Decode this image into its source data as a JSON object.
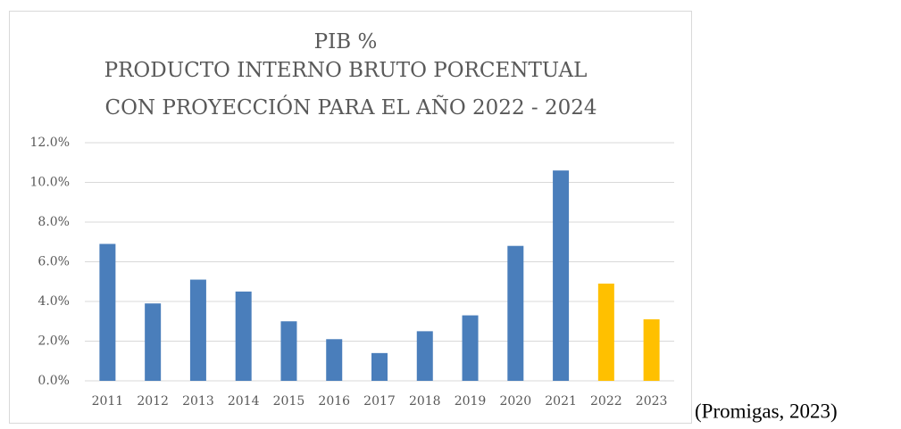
{
  "chart_data": {
    "type": "bar",
    "title": "PIB %",
    "subtitle": [
      "PRODUCTO INTERNO BRUTO PORCENTUAL",
      "CON PROYECCIÓN PARA EL AÑO 2022 - 2024"
    ],
    "categories": [
      "2011",
      "2012",
      "2013",
      "2014",
      "2015",
      "2016",
      "2017",
      "2018",
      "2019",
      "2020",
      "2021",
      "2022",
      "2023"
    ],
    "values": [
      6.9,
      3.9,
      5.1,
      4.5,
      3.0,
      2.1,
      1.4,
      2.5,
      3.3,
      6.8,
      10.6,
      4.9,
      3.1
    ],
    "colors": [
      "#4a7ebb",
      "#4a7ebb",
      "#4a7ebb",
      "#4a7ebb",
      "#4a7ebb",
      "#4a7ebb",
      "#4a7ebb",
      "#4a7ebb",
      "#4a7ebb",
      "#4a7ebb",
      "#4a7ebb",
      "#ffc000",
      "#ffc000"
    ],
    "ylim": [
      0,
      12
    ],
    "yticks": [
      {
        "value": 0,
        "label": "0.0%"
      },
      {
        "value": 2,
        "label": "2.0%"
      },
      {
        "value": 4,
        "label": "4.0%"
      },
      {
        "value": 6,
        "label": "6.0%"
      },
      {
        "value": 8,
        "label": "8.0%"
      },
      {
        "value": 10,
        "label": "10.0%"
      },
      {
        "value": 12,
        "label": "12.0%"
      }
    ],
    "grid": true
  },
  "caption": "(Promigas, 2023)"
}
